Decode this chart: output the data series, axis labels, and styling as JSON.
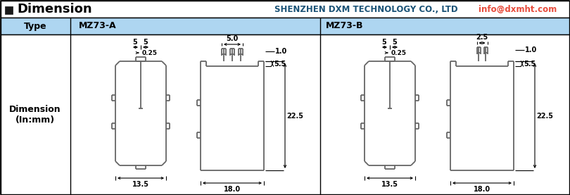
{
  "title_text": "Dimension",
  "header_company": "SHENZHEN DXM TECHNOLOGY CO., LTD",
  "header_email": "info@dxmht.com",
  "type_label": "Type",
  "type_a": "MZ73-A",
  "type_b": "MZ73-B",
  "dim_label": "Dimension\n(In:mm)",
  "bg_header_color": "#aed6f1",
  "company_color": "#1a5276",
  "email_color": "#e74c3c",
  "diagram_color": "#666666",
  "lw_diagram": 1.3,
  "lw_dim": 0.8,
  "fontsize_dim": 7.0,
  "fontsize_title": 13,
  "fontsize_type": 9,
  "fontsize_label": 9
}
